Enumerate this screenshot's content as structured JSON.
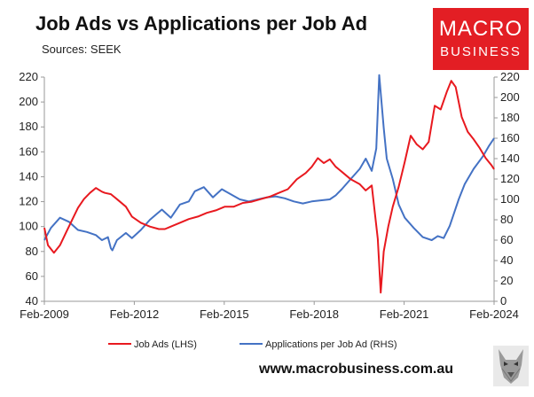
{
  "header": {
    "title": "Job Ads vs Applications per Job Ad",
    "subtitle": "Sources: SEEK"
  },
  "logo": {
    "line1": "MACRO",
    "line2": "BUSINESS"
  },
  "footer": {
    "url": "www.macrobusiness.com.au"
  },
  "colors": {
    "job_ads": "#e8191f",
    "applications": "#4472c4",
    "logo_bg": "#e31e24"
  },
  "chart_data": {
    "type": "line",
    "x_ticks": [
      "Feb-2009",
      "Feb-2012",
      "Feb-2015",
      "Feb-2018",
      "Feb-2021",
      "Feb-2024"
    ],
    "x_range": [
      2009.08,
      2024.08
    ],
    "y_left": {
      "min": 40,
      "max": 220,
      "ticks": [
        40,
        60,
        80,
        100,
        120,
        140,
        160,
        180,
        200,
        220
      ]
    },
    "y_right": {
      "min": 0,
      "max": 220,
      "ticks": [
        0,
        20,
        40,
        60,
        80,
        100,
        120,
        140,
        160,
        180,
        200,
        220
      ]
    },
    "grid": false,
    "legend_position": "bottom",
    "series": [
      {
        "name": "Job Ads (LHS)",
        "axis": "left",
        "color": "#e8191f",
        "x": [
          2009.08,
          2009.2,
          2009.4,
          2009.6,
          2009.8,
          2010.0,
          2010.2,
          2010.4,
          2010.6,
          2010.8,
          2011.0,
          2011.1,
          2011.3,
          2011.5,
          2011.8,
          2012.0,
          2012.3,
          2012.6,
          2012.9,
          2013.1,
          2013.3,
          2013.6,
          2013.9,
          2014.2,
          2014.5,
          2014.8,
          2015.1,
          2015.4,
          2015.7,
          2016.0,
          2016.3,
          2016.6,
          2016.9,
          2017.2,
          2017.5,
          2017.8,
          2018.0,
          2018.2,
          2018.4,
          2018.6,
          2018.8,
          2019.0,
          2019.3,
          2019.6,
          2019.8,
          2020.0,
          2020.2,
          2020.3,
          2020.4,
          2020.55,
          2020.7,
          2020.9,
          2021.1,
          2021.3,
          2021.5,
          2021.7,
          2021.9,
          2022.1,
          2022.3,
          2022.5,
          2022.65,
          2022.8,
          2023.0,
          2023.2,
          2023.4,
          2023.6,
          2023.8,
          2024.0,
          2024.08
        ],
        "y": [
          99,
          85,
          79,
          85,
          95,
          105,
          115,
          122,
          127,
          131,
          128,
          127,
          126,
          122,
          116,
          108,
          103,
          100,
          98,
          98,
          100,
          103,
          106,
          108,
          111,
          113,
          116,
          116,
          119,
          120,
          122,
          124,
          127,
          130,
          138,
          143,
          148,
          155,
          151,
          154,
          148,
          144,
          138,
          134,
          129,
          133,
          90,
          47,
          80,
          100,
          116,
          132,
          152,
          173,
          166,
          162,
          168,
          197,
          194,
          208,
          217,
          212,
          188,
          176,
          170,
          163,
          155,
          149,
          146
        ]
      },
      {
        "name": "Applications per Job Ad (RHS)",
        "axis": "right",
        "color": "#4472c4",
        "x": [
          2009.08,
          2009.3,
          2009.6,
          2009.9,
          2010.2,
          2010.5,
          2010.8,
          2011.0,
          2011.2,
          2011.3,
          2011.35,
          2011.5,
          2011.8,
          2012.0,
          2012.3,
          2012.6,
          2012.8,
          2013.0,
          2013.3,
          2013.6,
          2013.9,
          2014.1,
          2014.4,
          2014.7,
          2015.0,
          2015.3,
          2015.6,
          2015.9,
          2016.2,
          2016.5,
          2016.8,
          2017.1,
          2017.4,
          2017.7,
          2018.0,
          2018.3,
          2018.6,
          2018.8,
          2019.0,
          2019.3,
          2019.6,
          2019.8,
          2020.0,
          2020.15,
          2020.25,
          2020.4,
          2020.5,
          2020.7,
          2020.9,
          2021.1,
          2021.4,
          2021.7,
          2022.0,
          2022.2,
          2022.4,
          2022.6,
          2022.9,
          2023.1,
          2023.4,
          2023.7,
          2023.9,
          2024.08
        ],
        "y": [
          60,
          72,
          82,
          78,
          70,
          68,
          65,
          60,
          63,
          52,
          50,
          60,
          67,
          62,
          70,
          80,
          85,
          90,
          82,
          95,
          98,
          108,
          112,
          102,
          110,
          105,
          100,
          98,
          100,
          102,
          103,
          101,
          98,
          96,
          98,
          99,
          100,
          104,
          110,
          120,
          130,
          140,
          128,
          150,
          222,
          170,
          140,
          120,
          95,
          82,
          72,
          63,
          60,
          64,
          62,
          74,
          100,
          115,
          130,
          142,
          152,
          160
        ]
      }
    ]
  }
}
